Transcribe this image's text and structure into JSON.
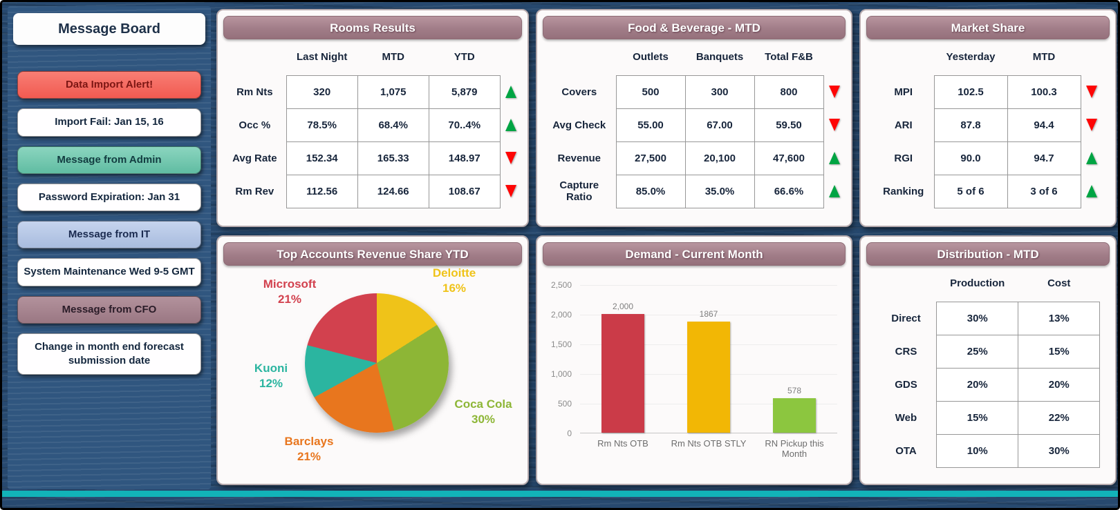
{
  "message_board": {
    "title": "Message Board",
    "items": [
      {
        "label": "Data Import Alert!",
        "style": "alert"
      },
      {
        "label": "Import Fail: Jan 15, 16",
        "style": "plain"
      },
      {
        "label": "Message from Admin",
        "style": "admin"
      },
      {
        "label": "Password Expiration: Jan 31",
        "style": "plain"
      },
      {
        "label": "Message from IT",
        "style": "it"
      },
      {
        "label": "System Maintenance Wed 9-5 GMT",
        "style": "plain"
      },
      {
        "label": "Message from CFO",
        "style": "cfo"
      },
      {
        "label": "Change in month end forecast submission date",
        "style": "plain"
      }
    ]
  },
  "rooms_results": {
    "title": "Rooms Results",
    "columns": [
      "Last Night",
      "MTD",
      "YTD"
    ],
    "rows": [
      {
        "label": "Rm Nts",
        "values": [
          "320",
          "1,075",
          "5,879"
        ],
        "trend": "up"
      },
      {
        "label": "Occ %",
        "values": [
          "78.5%",
          "68.4%",
          "70..4%"
        ],
        "trend": "up"
      },
      {
        "label": "Avg Rate",
        "values": [
          "152.34",
          "165.33",
          "148.97"
        ],
        "trend": "down"
      },
      {
        "label": "Rm Rev",
        "values": [
          "112.56",
          "124.66",
          "108.67"
        ],
        "trend": "down"
      }
    ]
  },
  "food_beverage": {
    "title": "Food & Beverage - MTD",
    "columns": [
      "Outlets",
      "Banquets",
      "Total F&B"
    ],
    "rows": [
      {
        "label": "Covers",
        "values": [
          "500",
          "300",
          "800"
        ],
        "trend": "down"
      },
      {
        "label": "Avg Check",
        "values": [
          "55.00",
          "67.00",
          "59.50"
        ],
        "trend": "down"
      },
      {
        "label": "Revenue",
        "values": [
          "27,500",
          "20,100",
          "47,600"
        ],
        "trend": "up"
      },
      {
        "label": "Capture Ratio",
        "values": [
          "85.0%",
          "35.0%",
          "66.6%"
        ],
        "trend": "up"
      }
    ]
  },
  "market_share": {
    "title": "Market Share",
    "columns": [
      "Yesterday",
      "MTD"
    ],
    "rows": [
      {
        "label": "MPI",
        "values": [
          "102.5",
          "100.3"
        ],
        "trend": "down"
      },
      {
        "label": "ARI",
        "values": [
          "87.8",
          "94.4"
        ],
        "trend": "down"
      },
      {
        "label": "RGI",
        "values": [
          "90.0",
          "94.7"
        ],
        "trend": "up"
      },
      {
        "label": "Ranking",
        "values": [
          "5 of 6",
          "3 of 6"
        ],
        "trend": "up"
      }
    ]
  },
  "distribution": {
    "title": "Distribution - MTD",
    "columns": [
      "Production",
      "Cost"
    ],
    "rows": [
      {
        "label": "Direct",
        "values": [
          "30%",
          "13%"
        ]
      },
      {
        "label": "CRS",
        "values": [
          "25%",
          "15%"
        ]
      },
      {
        "label": "GDS",
        "values": [
          "20%",
          "20%"
        ]
      },
      {
        "label": "Web",
        "values": [
          "15%",
          "22%"
        ]
      },
      {
        "label": "OTA",
        "values": [
          "10%",
          "30%"
        ]
      }
    ]
  },
  "chart_data": [
    {
      "type": "pie",
      "title": "Top Accounts Revenue Share YTD",
      "slices": [
        {
          "name": "Deloitte",
          "value": 16,
          "pct": "16%",
          "color": "#efc319",
          "pos": "top-right"
        },
        {
          "name": "Coca Cola",
          "value": 30,
          "pct": "30%",
          "color": "#8db636",
          "pos": "right"
        },
        {
          "name": "Barclays",
          "value": 21,
          "pct": "21%",
          "color": "#e8761e",
          "pos": "bottom-left"
        },
        {
          "name": "Kuoni",
          "value": 12,
          "pct": "12%",
          "color": "#2bb5a0",
          "pos": "left"
        },
        {
          "name": "Microsoft",
          "value": 21,
          "pct": "21%",
          "color": "#d2414e",
          "pos": "top-left"
        }
      ],
      "legend_position": "around"
    },
    {
      "type": "bar",
      "title": "Demand - Current Month",
      "categories": [
        "Rm Nts OTB",
        "Rm Nts OTB STLY",
        "RN Pickup this Month"
      ],
      "values": [
        2000,
        1867,
        578
      ],
      "value_labels": [
        "2,000",
        "1867",
        "578"
      ],
      "colors": [
        "#cb3b48",
        "#f2b705",
        "#8cc63f"
      ],
      "xlabel": "",
      "ylabel": "",
      "ylim": [
        0,
        2500
      ],
      "yticks": [
        "0",
        "500",
        "1,000",
        "1,500",
        "2,000",
        "2,500"
      ],
      "grid": true
    }
  ],
  "colors": {
    "trend_up": "#00a443",
    "trend_down": "#fe0505",
    "panel_header": "#a17d88",
    "background": "#27496f",
    "bottom_strip": "#12b3b8"
  }
}
